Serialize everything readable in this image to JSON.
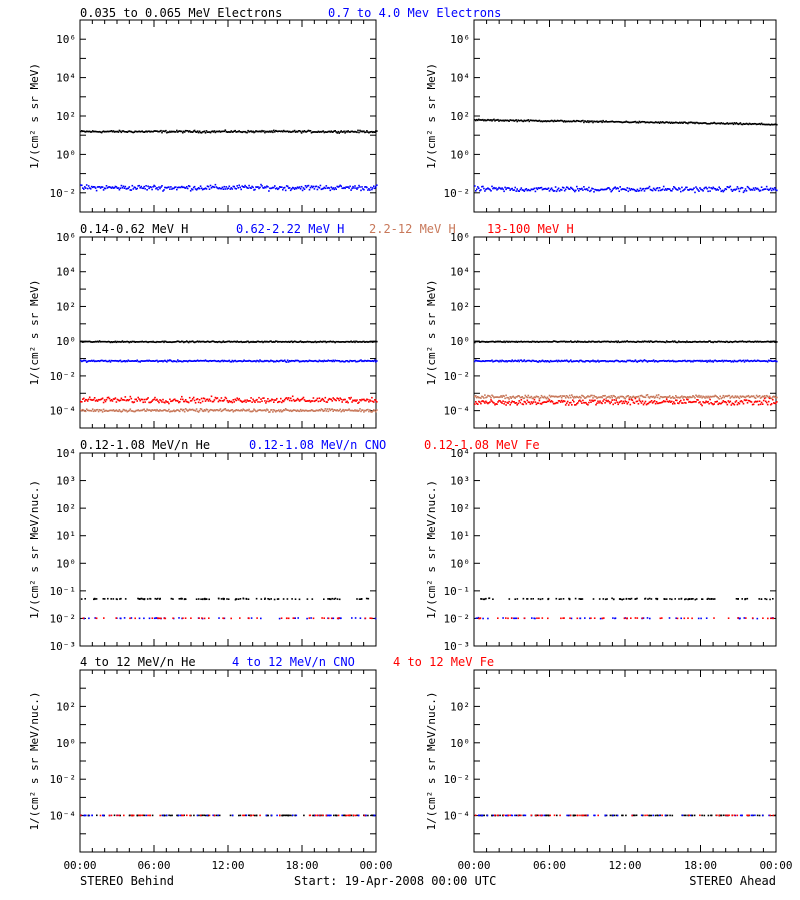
{
  "colors": {
    "black": "#000000",
    "blue": "#0000ff",
    "salmon": "#c8785a",
    "red": "#ff0000"
  },
  "footer": {
    "left": "STEREO Behind",
    "center": "Start: 19-Apr-2008 00:00 UTC",
    "right": "STEREO Ahead"
  },
  "x_ticks": [
    "00:00",
    "06:00",
    "12:00",
    "18:00",
    "00:00"
  ],
  "rows": [
    {
      "legend": [
        {
          "text": "0.035 to 0.065 MeV Electrons",
          "color": "#000000"
        },
        {
          "text": "0.7 to 4.0 Mev Electrons",
          "color": "#0000ff"
        }
      ],
      "ylabel": "1/(cm² s sr MeV)"
    },
    {
      "legend": [
        {
          "text": "0.14-0.62 MeV H",
          "color": "#000000"
        },
        {
          "text": "0.62-2.22 MeV H",
          "color": "#0000ff"
        },
        {
          "text": "2.2-12 MeV H",
          "color": "#c8785a"
        },
        {
          "text": "13-100 MeV H",
          "color": "#ff0000"
        }
      ],
      "ylabel": "1/(cm² s sr MeV)"
    },
    {
      "legend": [
        {
          "text": "0.12-1.08 MeV/n He",
          "color": "#000000"
        },
        {
          "text": "0.12-1.08 MeV/n CNO",
          "color": "#0000ff"
        },
        {
          "text": "0.12-1.08 MeV Fe",
          "color": "#ff0000"
        }
      ],
      "ylabel": "1/(cm² s sr MeV/nuc.)"
    },
    {
      "legend": [
        {
          "text": "4 to 12 MeV/n He",
          "color": "#000000"
        },
        {
          "text": "4 to 12 MeV/n CNO",
          "color": "#0000ff"
        },
        {
          "text": "4 to 12 MeV Fe",
          "color": "#ff0000"
        }
      ],
      "ylabel": "1/(cm² s sr MeV/nuc.)"
    }
  ],
  "chart_data": [
    {
      "type": "scatter",
      "panel": "behind-electrons",
      "x_range_hours": [
        0,
        24
      ],
      "ylog": true,
      "ylim": [
        0.001,
        10000000
      ],
      "ytick_labels": [
        "10^-2",
        "10^0",
        "10^2",
        "10^4",
        "10^6"
      ],
      "series": [
        {
          "name": "0.035 to 0.065 MeV Electrons",
          "color": "#000000",
          "level": 15,
          "scatter": 0.08
        },
        {
          "name": "0.7 to 4.0 Mev Electrons",
          "color": "#0000ff",
          "level": 0.018,
          "scatter": 0.2
        }
      ]
    },
    {
      "type": "scatter",
      "panel": "ahead-electrons",
      "x_range_hours": [
        0,
        24
      ],
      "ylog": true,
      "ylim": [
        0.001,
        10000000
      ],
      "ytick_labels": [
        "10^-2",
        "10^0",
        "10^2",
        "10^4",
        "10^6"
      ],
      "series": [
        {
          "name": "0.035 to 0.065 MeV Electrons",
          "color": "#000000",
          "level": 60,
          "end_level": 35,
          "scatter": 0.06
        },
        {
          "name": "0.7 to 4.0 Mev Electrons",
          "color": "#0000ff",
          "level": 0.015,
          "scatter": 0.2
        }
      ]
    },
    {
      "type": "scatter",
      "panel": "behind-protons",
      "x_range_hours": [
        0,
        24
      ],
      "ylog": true,
      "ylim": [
        1e-05,
        1000000
      ],
      "ytick_labels": [
        "10^-4",
        "10^-2",
        "10^0",
        "10^2",
        "10^4",
        "10^6"
      ],
      "series": [
        {
          "name": "0.14-0.62 MeV H",
          "color": "#000000",
          "level": 0.9,
          "scatter": 0.05
        },
        {
          "name": "0.62-2.22 MeV H",
          "color": "#0000ff",
          "level": 0.07,
          "scatter": 0.07
        },
        {
          "name": "2.2-12 MeV H",
          "color": "#c8785a",
          "level": 0.0001,
          "scatter": 0.12
        },
        {
          "name": "13-100 MeV H",
          "color": "#ff0000",
          "level": 0.0004,
          "scatter": 0.25
        }
      ]
    },
    {
      "type": "scatter",
      "panel": "ahead-protons",
      "x_range_hours": [
        0,
        24
      ],
      "ylog": true,
      "ylim": [
        1e-05,
        1000000
      ],
      "ytick_labels": [
        "10^-4",
        "10^-2",
        "10^0",
        "10^2",
        "10^4",
        "10^6"
      ],
      "series": [
        {
          "name": "0.14-0.62 MeV H",
          "color": "#000000",
          "level": 0.9,
          "scatter": 0.05
        },
        {
          "name": "0.62-2.22 MeV H",
          "color": "#0000ff",
          "level": 0.07,
          "scatter": 0.07
        },
        {
          "name": "2.2-12 MeV H",
          "color": "#c8785a",
          "level": 0.0006,
          "scatter": 0.15
        },
        {
          "name": "13-100 MeV H",
          "color": "#ff0000",
          "level": 0.0003,
          "scatter": 0.25
        }
      ]
    },
    {
      "type": "scatter",
      "panel": "behind-lowE-ions",
      "x_range_hours": [
        0,
        24
      ],
      "ylog": true,
      "ylim": [
        0.001,
        10000
      ],
      "ytick_labels": [
        "10^-3",
        "10^-2",
        "10^-1",
        "10^0",
        "10^1",
        "10^2",
        "10^3",
        "10^4"
      ],
      "series": [
        {
          "name": "0.12-1.08 MeV/n He",
          "color": "#000000",
          "level": 0.05,
          "scatter": 0.03
        },
        {
          "name": "0.12-1.08 MeV/n CNO",
          "color": "#0000ff",
          "level": 0.01,
          "scatter": 0.02
        },
        {
          "name": "0.12-1.08 MeV Fe",
          "color": "#ff0000",
          "level": 0.01,
          "scatter": 0.0
        }
      ]
    },
    {
      "type": "scatter",
      "panel": "ahead-lowE-ions",
      "x_range_hours": [
        0,
        24
      ],
      "ylog": true,
      "ylim": [
        0.001,
        10000
      ],
      "ytick_labels": [
        "10^-3",
        "10^-2",
        "10^-1",
        "10^0",
        "10^1",
        "10^2",
        "10^3",
        "10^4"
      ],
      "series": [
        {
          "name": "0.12-1.08 MeV/n He",
          "color": "#000000",
          "level": 0.05,
          "scatter": 0.03
        },
        {
          "name": "0.12-1.08 MeV/n CNO",
          "color": "#0000ff",
          "level": 0.01,
          "scatter": 0.02
        },
        {
          "name": "0.12-1.08 MeV Fe",
          "color": "#ff0000",
          "level": 0.01,
          "scatter": 0.0
        }
      ]
    },
    {
      "type": "scatter",
      "panel": "behind-highE-ions",
      "x_range_hours": [
        0,
        24
      ],
      "ylog": true,
      "ylim": [
        1e-06,
        10000
      ],
      "ytick_labels": [
        "10^-4",
        "10^-2",
        "10^0",
        "10^2"
      ],
      "series": [
        {
          "name": "4 to 12 MeV/n He",
          "color": "#000000",
          "level": 0.0001,
          "scatter": 0.0
        },
        {
          "name": "4 to 12 MeV/n CNO",
          "color": "#0000ff",
          "level": 0.0001,
          "scatter": 0.0
        },
        {
          "name": "4 to 12 MeV Fe",
          "color": "#ff0000",
          "level": 0.0001,
          "scatter": 0.0
        }
      ]
    },
    {
      "type": "scatter",
      "panel": "ahead-highE-ions",
      "x_range_hours": [
        0,
        24
      ],
      "ylog": true,
      "ylim": [
        1e-06,
        10000
      ],
      "ytick_labels": [
        "10^-4",
        "10^-2",
        "10^0",
        "10^2"
      ],
      "series": [
        {
          "name": "4 to 12 MeV/n He",
          "color": "#000000",
          "level": 0.0001,
          "scatter": 0.0
        },
        {
          "name": "4 to 12 MeV/n CNO",
          "color": "#0000ff",
          "level": 0.0001,
          "scatter": 0.0
        },
        {
          "name": "4 to 12 MeV Fe",
          "color": "#ff0000",
          "level": 0.0001,
          "scatter": 0.0
        }
      ]
    }
  ]
}
